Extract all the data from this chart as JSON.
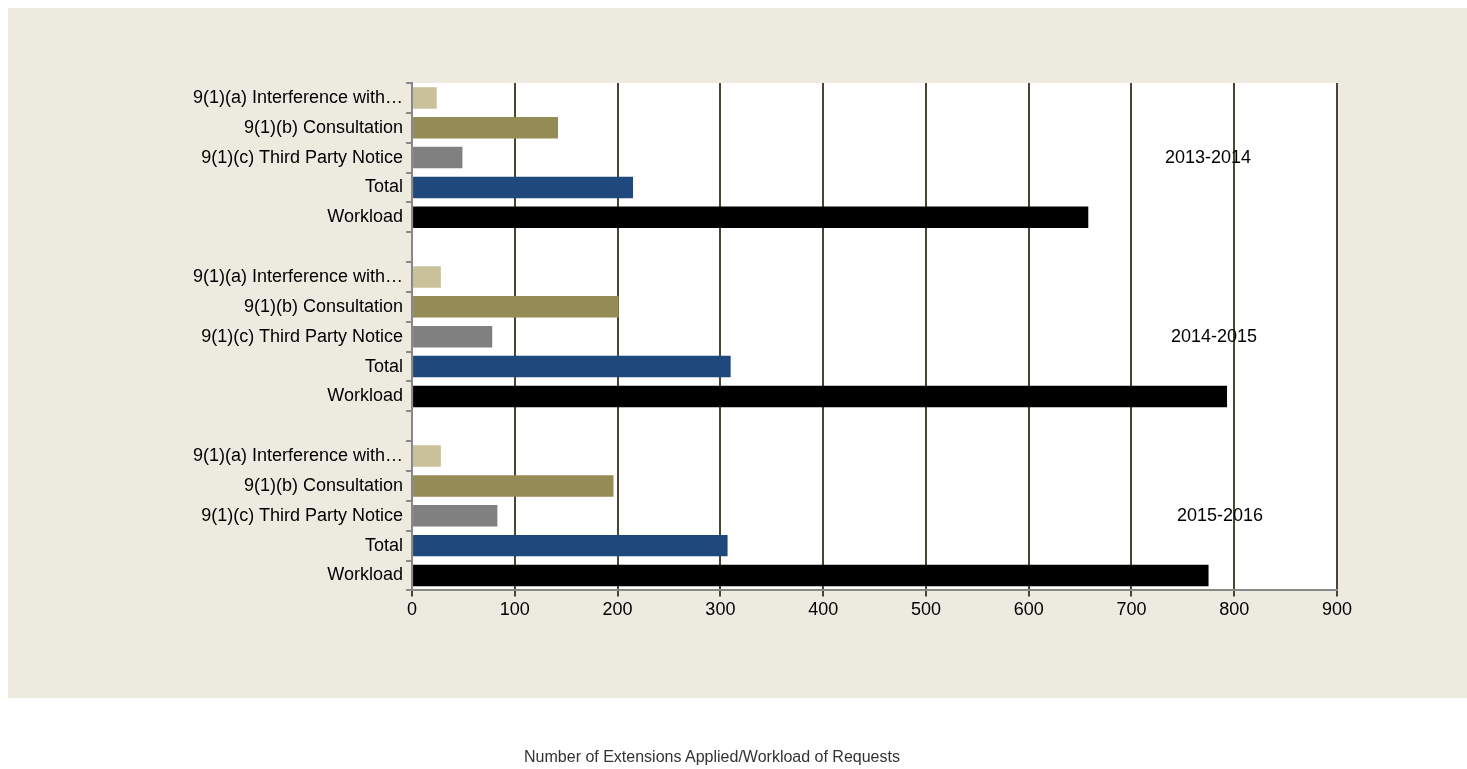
{
  "chart_data": {
    "type": "bar",
    "orientation": "horizontal",
    "categories": [
      "9(1)(a) Interference with…",
      "9(1)(b) Consultation",
      "9(1)(c) Third Party Notice",
      "Total",
      "Workload",
      "9(1)(a) Interference with…",
      "9(1)(b) Consultation",
      "9(1)(c) Third Party Notice",
      "Total",
      "Workload",
      "9(1)(a) Interference with…",
      "9(1)(b) Consultation",
      "9(1)(c) Third Party Notice",
      "Total",
      "Workload"
    ],
    "values": [
      24,
      142,
      49,
      215,
      658,
      28,
      201,
      78,
      310,
      793,
      28,
      196,
      83,
      307,
      775
    ],
    "colors": [
      "#c9c19a",
      "#958b55",
      "#808080",
      "#1f497d",
      "#000000",
      "#c9c19a",
      "#958b55",
      "#808080",
      "#1f497d",
      "#000000",
      "#c9c19a",
      "#958b55",
      "#808080",
      "#1f497d",
      "#000000"
    ],
    "xlim": [
      0,
      900
    ],
    "xticks": [
      0,
      100,
      200,
      300,
      400,
      500,
      600,
      700,
      800,
      900
    ],
    "grid": "x",
    "legend": false,
    "annotations": [
      "2013-2014",
      "2014-2015",
      "2015-2016",
      "Number of Extensions Applied/Workload of Requests"
    ]
  }
}
